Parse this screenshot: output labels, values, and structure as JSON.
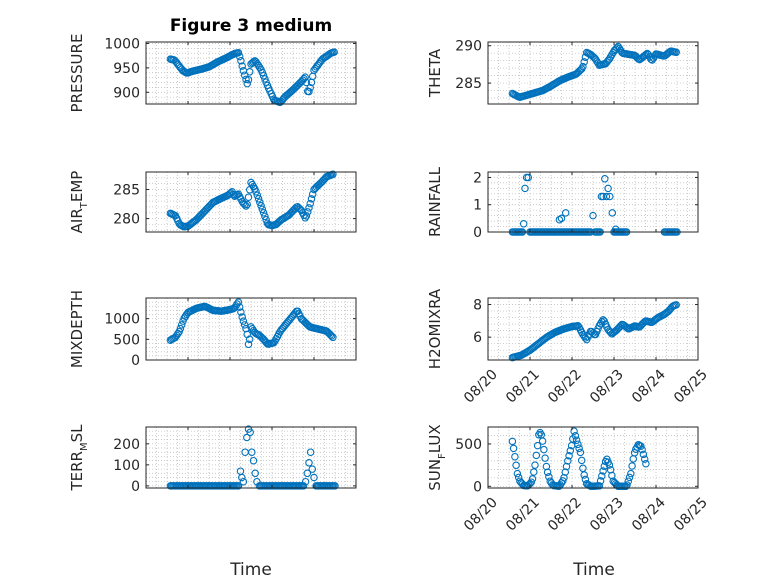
{
  "figure_title": "Figure 3 medium",
  "colors": {
    "marker": "#0072BD",
    "axis": "#262626",
    "grid": "#b8b8b8",
    "background": "#ffffff"
  },
  "chart_data": [
    {
      "type": "scatter",
      "title": "Figure 3 medium",
      "ylabel": "PRESSURE",
      "ylabel_parts": [
        "PRESSURE"
      ],
      "xlim": [
        0,
        5
      ],
      "ylim": [
        876,
        1003
      ],
      "yticks": [
        900,
        950,
        1000
      ],
      "ytick_labels": [
        "900",
        "950",
        "1000"
      ],
      "xticks": [
        0,
        1,
        2,
        3,
        4,
        5
      ],
      "xtick_labels": [],
      "grid": true,
      "keys": [
        [
          0.58,
          968
        ],
        [
          0.68,
          966
        ],
        [
          0.78,
          955
        ],
        [
          0.88,
          944
        ],
        [
          0.98,
          939
        ],
        [
          1.1,
          943
        ],
        [
          1.3,
          947
        ],
        [
          1.5,
          952
        ],
        [
          1.7,
          962
        ],
        [
          1.9,
          970
        ],
        [
          2.1,
          979
        ],
        [
          2.2,
          981
        ],
        [
          2.25,
          968
        ],
        [
          2.3,
          950
        ],
        [
          2.36,
          932
        ],
        [
          2.42,
          915
        ],
        [
          2.5,
          958
        ],
        [
          2.6,
          965
        ],
        [
          2.75,
          945
        ],
        [
          2.9,
          912
        ],
        [
          3.05,
          884
        ],
        [
          3.2,
          879
        ],
        [
          3.3,
          890
        ],
        [
          3.5,
          905
        ],
        [
          3.7,
          922
        ],
        [
          3.8,
          932
        ],
        [
          3.86,
          896
        ],
        [
          3.92,
          912
        ],
        [
          4.0,
          945
        ],
        [
          4.2,
          968
        ],
        [
          4.4,
          980
        ],
        [
          4.5,
          983
        ]
      ]
    },
    {
      "type": "scatter",
      "ylabel": "THETA",
      "ylabel_parts": [
        "THETA"
      ],
      "xlim": [
        0,
        5
      ],
      "ylim": [
        282.2,
        290.5
      ],
      "yticks": [
        285,
        290
      ],
      "ytick_labels": [
        "285",
        "290"
      ],
      "xticks": [
        0,
        1,
        2,
        3,
        4,
        5
      ],
      "xtick_labels": [],
      "grid": true,
      "keys": [
        [
          0.58,
          283.6
        ],
        [
          0.75,
          283.1
        ],
        [
          1.0,
          283.5
        ],
        [
          1.3,
          284.0
        ],
        [
          1.5,
          284.6
        ],
        [
          1.7,
          285.3
        ],
        [
          1.9,
          285.8
        ],
        [
          2.1,
          286.2
        ],
        [
          2.25,
          287.0
        ],
        [
          2.35,
          289.1
        ],
        [
          2.45,
          288.8
        ],
        [
          2.55,
          288.3
        ],
        [
          2.65,
          287.4
        ],
        [
          2.8,
          287.6
        ],
        [
          2.9,
          288.3
        ],
        [
          3.0,
          289.3
        ],
        [
          3.1,
          289.9
        ],
        [
          3.2,
          289.0
        ],
        [
          3.5,
          288.7
        ],
        [
          3.6,
          288.1
        ],
        [
          3.8,
          289.0
        ],
        [
          3.9,
          288.0
        ],
        [
          4.0,
          288.9
        ],
        [
          4.2,
          288.6
        ],
        [
          4.35,
          289.3
        ],
        [
          4.5,
          289.1
        ]
      ]
    },
    {
      "type": "scatter",
      "ylabel": "AIR_TEMP",
      "ylabel_parts": [
        "AIR",
        "T",
        "EMP"
      ],
      "xlim": [
        0,
        5
      ],
      "ylim": [
        277.7,
        288
      ],
      "yticks": [
        280,
        285
      ],
      "ytick_labels": [
        "280",
        "285"
      ],
      "xticks": [
        0,
        1,
        2,
        3,
        4,
        5
      ],
      "xtick_labels": [],
      "grid": true,
      "keys": [
        [
          0.58,
          280.9
        ],
        [
          0.7,
          280.5
        ],
        [
          0.8,
          279.0
        ],
        [
          0.9,
          278.6
        ],
        [
          1.0,
          278.7
        ],
        [
          1.2,
          279.8
        ],
        [
          1.4,
          281.3
        ],
        [
          1.6,
          282.8
        ],
        [
          1.8,
          283.5
        ],
        [
          1.95,
          284.0
        ],
        [
          2.05,
          284.6
        ],
        [
          2.1,
          283.8
        ],
        [
          2.2,
          284.2
        ],
        [
          2.3,
          282.8
        ],
        [
          2.4,
          282.0
        ],
        [
          2.5,
          286.2
        ],
        [
          2.6,
          285.0
        ],
        [
          2.7,
          283.0
        ],
        [
          2.8,
          281.0
        ],
        [
          2.9,
          279.0
        ],
        [
          3.0,
          278.8
        ],
        [
          3.1,
          279.0
        ],
        [
          3.2,
          279.7
        ],
        [
          3.4,
          280.6
        ],
        [
          3.6,
          282.1
        ],
        [
          3.7,
          281.4
        ],
        [
          3.8,
          280.0
        ],
        [
          3.9,
          282.3
        ],
        [
          4.0,
          285.0
        ],
        [
          4.2,
          286.4
        ],
        [
          4.3,
          287.2
        ],
        [
          4.45,
          287.6
        ]
      ]
    },
    {
      "type": "scatter",
      "ylabel": "RAINFALL",
      "ylabel_parts": [
        "RAINFALL"
      ],
      "xlim": [
        0,
        5
      ],
      "ylim": [
        0,
        2.2
      ],
      "yticks": [
        0,
        1,
        2
      ],
      "ytick_labels": [
        "0",
        "1",
        "2"
      ],
      "xticks": [
        0,
        1,
        2,
        3,
        4,
        5
      ],
      "xtick_labels": [],
      "grid": true,
      "points": [
        [
          0.85,
          0.3
        ],
        [
          0.88,
          1.6
        ],
        [
          0.92,
          2.0
        ],
        [
          0.96,
          2.0
        ],
        [
          1.7,
          0.45
        ],
        [
          1.75,
          0.5
        ],
        [
          1.85,
          0.7
        ],
        [
          2.5,
          0.6
        ],
        [
          2.7,
          1.3
        ],
        [
          2.74,
          1.3
        ],
        [
          2.78,
          1.95
        ],
        [
          2.82,
          1.3
        ],
        [
          2.86,
          1.6
        ],
        [
          2.9,
          1.3
        ],
        [
          2.96,
          0.7
        ],
        [
          3.04,
          0.1
        ]
      ],
      "zero_ranges": [
        [
          0.58,
          0.82
        ],
        [
          1.0,
          2.45
        ],
        [
          2.55,
          2.68
        ],
        [
          3.0,
          3.3
        ],
        [
          4.2,
          4.5
        ]
      ]
    },
    {
      "type": "scatter",
      "ylabel": "MIXDEPTH",
      "ylabel_parts": [
        "MIXDEPTH"
      ],
      "xlim": [
        0,
        5
      ],
      "ylim": [
        0,
        1500
      ],
      "yticks": [
        0,
        500,
        1000
      ],
      "ytick_labels": [
        "0",
        "500",
        "1000"
      ],
      "xticks": [
        0,
        1,
        2,
        3,
        4,
        5
      ],
      "xtick_labels": [],
      "grid": true,
      "keys": [
        [
          0.58,
          480
        ],
        [
          0.7,
          550
        ],
        [
          0.8,
          700
        ],
        [
          0.9,
          1000
        ],
        [
          1.0,
          1150
        ],
        [
          1.2,
          1250
        ],
        [
          1.4,
          1300
        ],
        [
          1.6,
          1200
        ],
        [
          1.8,
          1180
        ],
        [
          2.0,
          1220
        ],
        [
          2.1,
          1250
        ],
        [
          2.2,
          1400
        ],
        [
          2.3,
          1000
        ],
        [
          2.4,
          700
        ],
        [
          2.45,
          300
        ],
        [
          2.5,
          800
        ],
        [
          2.6,
          650
        ],
        [
          2.7,
          600
        ],
        [
          2.8,
          500
        ],
        [
          2.9,
          380
        ],
        [
          3.05,
          420
        ],
        [
          3.2,
          700
        ],
        [
          3.4,
          950
        ],
        [
          3.6,
          1200
        ],
        [
          3.7,
          1000
        ],
        [
          3.8,
          900
        ],
        [
          3.9,
          800
        ],
        [
          4.1,
          750
        ],
        [
          4.3,
          700
        ],
        [
          4.45,
          550
        ]
      ]
    },
    {
      "type": "scatter",
      "ylabel": "H2OMIXRA",
      "ylabel_parts": [
        "H2OMIXRA"
      ],
      "xlim": [
        0,
        5
      ],
      "ylim": [
        4.6,
        8.4
      ],
      "yticks": [
        6,
        8
      ],
      "ytick_labels": [
        "6",
        "8"
      ],
      "xticks": [
        0,
        1,
        2,
        3,
        4,
        5
      ],
      "xtick_labels": [
        "08/20",
        "08/21",
        "08/22",
        "08/23",
        "08/24",
        "08/25"
      ],
      "grid": true,
      "keys": [
        [
          0.58,
          4.75
        ],
        [
          0.8,
          4.9
        ],
        [
          1.0,
          5.2
        ],
        [
          1.2,
          5.6
        ],
        [
          1.4,
          6.0
        ],
        [
          1.6,
          6.3
        ],
        [
          1.8,
          6.5
        ],
        [
          2.0,
          6.65
        ],
        [
          2.15,
          6.7
        ],
        [
          2.25,
          6.2
        ],
        [
          2.35,
          5.85
        ],
        [
          2.45,
          6.4
        ],
        [
          2.55,
          6.1
        ],
        [
          2.65,
          6.7
        ],
        [
          2.75,
          7.1
        ],
        [
          2.85,
          6.5
        ],
        [
          2.95,
          6.2
        ],
        [
          3.05,
          6.4
        ],
        [
          3.2,
          6.8
        ],
        [
          3.35,
          6.5
        ],
        [
          3.5,
          6.7
        ],
        [
          3.6,
          6.6
        ],
        [
          3.75,
          7.0
        ],
        [
          3.9,
          6.9
        ],
        [
          4.05,
          7.2
        ],
        [
          4.2,
          7.4
        ],
        [
          4.3,
          7.6
        ],
        [
          4.4,
          7.9
        ],
        [
          4.5,
          8.0
        ]
      ]
    },
    {
      "type": "scatter",
      "ylabel": "TERR_MSL",
      "ylabel_parts": [
        "TERR",
        "M",
        "SL"
      ],
      "xlim": [
        0,
        5
      ],
      "ylim": [
        -10,
        280
      ],
      "yticks": [
        0,
        100,
        200
      ],
      "ytick_labels": [
        "0",
        "100",
        "200"
      ],
      "xticks": [
        0,
        1,
        2,
        3,
        4,
        5
      ],
      "xtick_labels": [],
      "grid": true,
      "points": [
        [
          2.25,
          70
        ],
        [
          2.28,
          40
        ],
        [
          2.32,
          20
        ],
        [
          2.36,
          160
        ],
        [
          2.4,
          230
        ],
        [
          2.44,
          270
        ],
        [
          2.48,
          255
        ],
        [
          2.52,
          160
        ],
        [
          2.56,
          120
        ],
        [
          2.6,
          60
        ],
        [
          2.64,
          20
        ],
        [
          3.8,
          20
        ],
        [
          3.84,
          60
        ],
        [
          3.88,
          110
        ],
        [
          3.92,
          160
        ],
        [
          3.96,
          80
        ],
        [
          4.0,
          40
        ]
      ],
      "zero_ranges": [
        [
          0.58,
          2.2
        ],
        [
          2.7,
          3.75
        ],
        [
          4.05,
          4.5
        ]
      ]
    },
    {
      "type": "scatter",
      "ylabel": "SUN_FLUX",
      "ylabel_parts": [
        "SUN",
        "F",
        "LUX"
      ],
      "xlim": [
        0,
        5
      ],
      "ylim": [
        -20,
        700
      ],
      "yticks": [
        0,
        500
      ],
      "ytick_labels": [
        "0",
        "500"
      ],
      "xticks": [
        0,
        1,
        2,
        3,
        4,
        5
      ],
      "xtick_labels": [
        "08/20",
        "08/21",
        "08/22",
        "08/23",
        "08/24",
        "08/25"
      ],
      "grid": true,
      "keys": [
        [
          0.58,
          530
        ],
        [
          0.62,
          420
        ],
        [
          0.66,
          280
        ],
        [
          0.7,
          150
        ],
        [
          0.76,
          60
        ],
        [
          0.85,
          10
        ],
        [
          0.95,
          5
        ],
        [
          1.05,
          60
        ],
        [
          1.12,
          250
        ],
        [
          1.18,
          480
        ],
        [
          1.22,
          650
        ],
        [
          1.28,
          600
        ],
        [
          1.34,
          400
        ],
        [
          1.4,
          200
        ],
        [
          1.48,
          60
        ],
        [
          1.55,
          10
        ],
        [
          1.7,
          0
        ],
        [
          1.8,
          80
        ],
        [
          1.9,
          300
        ],
        [
          2.0,
          500
        ],
        [
          2.05,
          650
        ],
        [
          2.1,
          560
        ],
        [
          2.2,
          400
        ],
        [
          2.28,
          150
        ],
        [
          2.35,
          30
        ],
        [
          2.45,
          0
        ],
        [
          2.65,
          5
        ],
        [
          2.75,
          200
        ],
        [
          2.82,
          330
        ],
        [
          2.9,
          240
        ],
        [
          2.98,
          60
        ],
        [
          3.1,
          0
        ],
        [
          3.3,
          0
        ],
        [
          3.4,
          150
        ],
        [
          3.45,
          300
        ],
        [
          3.5,
          420
        ],
        [
          3.58,
          490
        ],
        [
          3.65,
          470
        ],
        [
          3.72,
          340
        ],
        [
          3.78,
          230
        ]
      ]
    }
  ],
  "xlabels": [
    "Time",
    "Time"
  ]
}
